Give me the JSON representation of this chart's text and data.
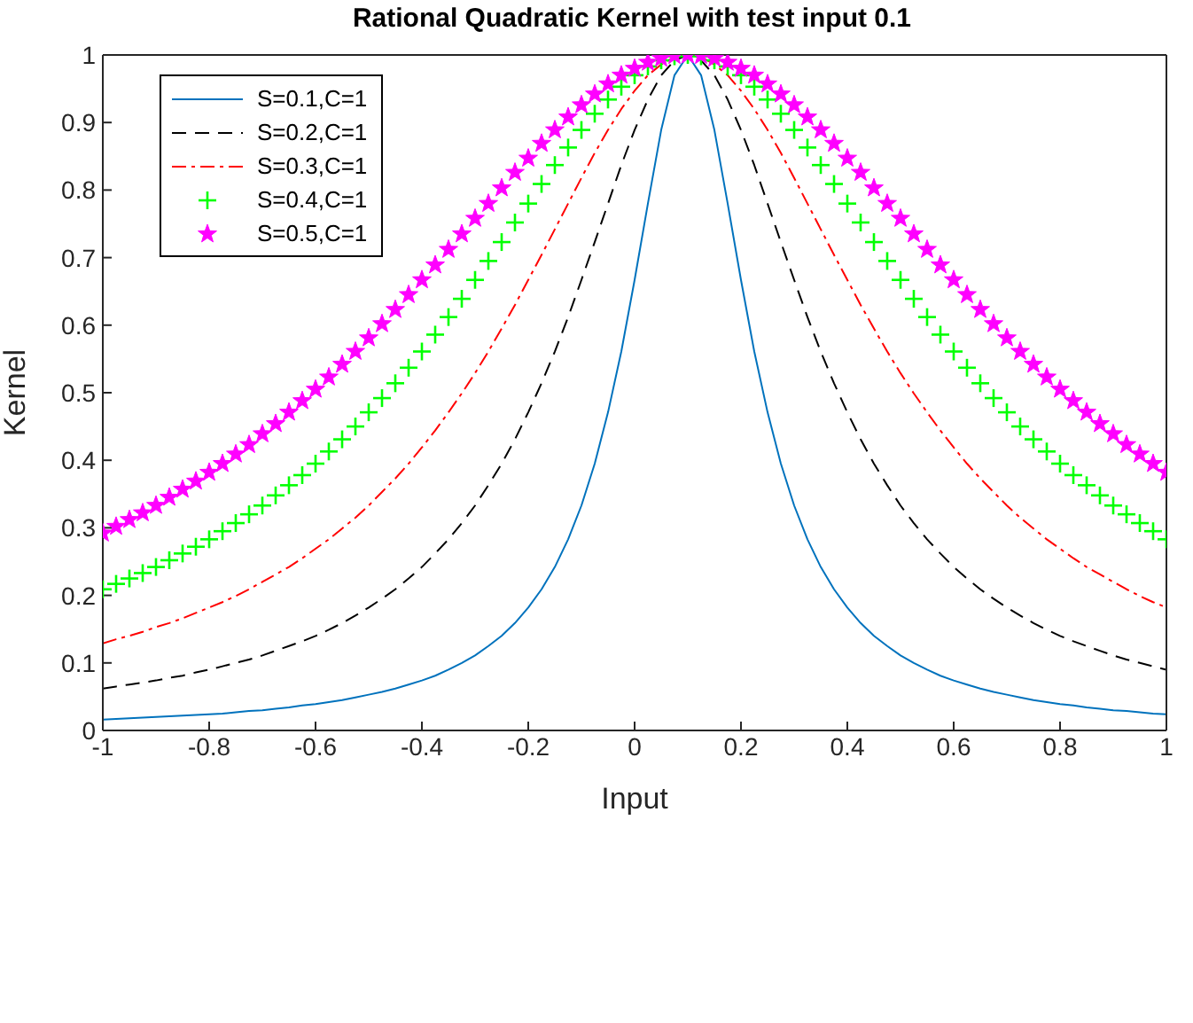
{
  "chart_data": {
    "type": "line",
    "title": "Rational Quadratic Kernel with test input 0.1",
    "xlabel": "Input",
    "ylabel": "Kernel",
    "x": [
      -1,
      -0.975,
      -0.95,
      -0.925,
      -0.9,
      -0.875,
      -0.85,
      -0.825,
      -0.8,
      -0.775,
      -0.75,
      -0.725,
      -0.7,
      -0.675,
      -0.65,
      -0.625,
      -0.6,
      -0.575,
      -0.55,
      -0.525,
      -0.5,
      -0.475,
      -0.45,
      -0.425,
      -0.4,
      -0.375,
      -0.35,
      -0.325,
      -0.3,
      -0.275,
      -0.25,
      -0.225,
      -0.2,
      -0.175,
      -0.15,
      -0.125,
      -0.1,
      -0.075,
      -0.05,
      -0.025,
      0,
      0.025,
      0.05,
      0.075,
      0.1,
      0.125,
      0.15,
      0.175,
      0.2,
      0.225,
      0.25,
      0.275,
      0.3,
      0.325,
      0.35,
      0.375,
      0.4,
      0.425,
      0.45,
      0.475,
      0.5,
      0.525,
      0.55,
      0.575,
      0.6,
      0.625,
      0.65,
      0.675,
      0.7,
      0.725,
      0.75,
      0.775,
      0.8,
      0.825,
      0.85,
      0.875,
      0.9,
      0.925,
      0.95,
      0.975,
      1
    ],
    "series": [
      {
        "name": "S=0.1,C=1",
        "color": "#0072bd",
        "line_style": "solid",
        "values": [
          0.016,
          0.017,
          0.018,
          0.019,
          0.02,
          0.021,
          0.022,
          0.023,
          0.024,
          0.025,
          0.027,
          0.029,
          0.03,
          0.032,
          0.034,
          0.037,
          0.039,
          0.042,
          0.045,
          0.049,
          0.053,
          0.057,
          0.062,
          0.068,
          0.074,
          0.081,
          0.09,
          0.1,
          0.111,
          0.125,
          0.14,
          0.159,
          0.182,
          0.209,
          0.242,
          0.283,
          0.333,
          0.395,
          0.471,
          0.561,
          0.667,
          0.78,
          0.889,
          0.97,
          1,
          0.97,
          0.889,
          0.78,
          0.667,
          0.561,
          0.471,
          0.395,
          0.333,
          0.283,
          0.242,
          0.209,
          0.182,
          0.159,
          0.14,
          0.125,
          0.111,
          0.1,
          0.09,
          0.081,
          0.074,
          0.068,
          0.062,
          0.057,
          0.053,
          0.049,
          0.045,
          0.042,
          0.039,
          0.037,
          0.034,
          0.032,
          0.03,
          0.029,
          0.027,
          0.025,
          0.024
        ]
      },
      {
        "name": "S=0.2,C=1",
        "color": "#000000",
        "line_style": "dashed",
        "values": [
          0.062,
          0.065,
          0.068,
          0.071,
          0.074,
          0.078,
          0.081,
          0.086,
          0.09,
          0.095,
          0.1,
          0.105,
          0.111,
          0.118,
          0.125,
          0.132,
          0.14,
          0.149,
          0.159,
          0.17,
          0.182,
          0.195,
          0.209,
          0.225,
          0.242,
          0.262,
          0.283,
          0.307,
          0.333,
          0.363,
          0.395,
          0.431,
          0.471,
          0.514,
          0.561,
          0.612,
          0.667,
          0.723,
          0.78,
          0.837,
          0.889,
          0.934,
          0.97,
          0.992,
          1,
          0.992,
          0.97,
          0.934,
          0.889,
          0.837,
          0.78,
          0.723,
          0.667,
          0.612,
          0.561,
          0.514,
          0.471,
          0.431,
          0.395,
          0.363,
          0.333,
          0.307,
          0.283,
          0.262,
          0.242,
          0.225,
          0.209,
          0.195,
          0.182,
          0.17,
          0.159,
          0.149,
          0.14,
          0.132,
          0.125,
          0.118,
          0.111,
          0.105,
          0.1,
          0.095,
          0.09
        ]
      },
      {
        "name": "S=0.3,C=1",
        "color": "#ff0000",
        "line_style": "dashdot",
        "values": [
          0.129,
          0.135,
          0.14,
          0.146,
          0.153,
          0.159,
          0.166,
          0.174,
          0.182,
          0.19,
          0.199,
          0.209,
          0.22,
          0.231,
          0.242,
          0.255,
          0.269,
          0.283,
          0.299,
          0.315,
          0.333,
          0.353,
          0.373,
          0.395,
          0.419,
          0.444,
          0.471,
          0.499,
          0.529,
          0.561,
          0.595,
          0.63,
          0.667,
          0.704,
          0.742,
          0.78,
          0.818,
          0.855,
          0.889,
          0.92,
          0.947,
          0.97,
          0.986,
          0.997,
          1,
          0.997,
          0.986,
          0.97,
          0.947,
          0.92,
          0.889,
          0.855,
          0.818,
          0.78,
          0.742,
          0.704,
          0.667,
          0.63,
          0.595,
          0.561,
          0.529,
          0.499,
          0.471,
          0.444,
          0.419,
          0.395,
          0.373,
          0.353,
          0.333,
          0.315,
          0.299,
          0.283,
          0.269,
          0.255,
          0.242,
          0.231,
          0.22,
          0.209,
          0.199,
          0.19,
          0.182
        ]
      },
      {
        "name": "S=0.4,C=1",
        "type": "scatter",
        "color": "#00ff00",
        "marker": "cross",
        "values": [
          0.209,
          0.217,
          0.225,
          0.233,
          0.242,
          0.252,
          0.262,
          0.272,
          0.283,
          0.295,
          0.307,
          0.32,
          0.333,
          0.348,
          0.363,
          0.378,
          0.395,
          0.413,
          0.431,
          0.45,
          0.471,
          0.492,
          0.514,
          0.537,
          0.561,
          0.586,
          0.612,
          0.639,
          0.667,
          0.695,
          0.723,
          0.752,
          0.78,
          0.809,
          0.837,
          0.863,
          0.889,
          0.913,
          0.934,
          0.953,
          0.97,
          0.983,
          0.992,
          0.998,
          1,
          0.998,
          0.992,
          0.983,
          0.97,
          0.953,
          0.934,
          0.913,
          0.889,
          0.863,
          0.837,
          0.809,
          0.78,
          0.752,
          0.723,
          0.695,
          0.667,
          0.639,
          0.612,
          0.586,
          0.561,
          0.537,
          0.514,
          0.492,
          0.471,
          0.45,
          0.431,
          0.413,
          0.395,
          0.378,
          0.363,
          0.348,
          0.333,
          0.32,
          0.307,
          0.295,
          0.283
        ]
      },
      {
        "name": "S=0.5,C=1",
        "type": "scatter",
        "color": "#ff00ff",
        "marker": "star",
        "values": [
          0.292,
          0.302,
          0.312,
          0.322,
          0.333,
          0.345,
          0.357,
          0.369,
          0.382,
          0.395,
          0.409,
          0.423,
          0.439,
          0.454,
          0.471,
          0.488,
          0.505,
          0.523,
          0.542,
          0.561,
          0.581,
          0.602,
          0.623,
          0.645,
          0.667,
          0.689,
          0.712,
          0.735,
          0.758,
          0.78,
          0.803,
          0.826,
          0.847,
          0.869,
          0.889,
          0.908,
          0.926,
          0.942,
          0.957,
          0.97,
          0.98,
          0.989,
          0.995,
          0.999,
          1,
          0.999,
          0.995,
          0.989,
          0.98,
          0.97,
          0.957,
          0.942,
          0.926,
          0.908,
          0.889,
          0.869,
          0.847,
          0.826,
          0.803,
          0.78,
          0.758,
          0.735,
          0.712,
          0.689,
          0.667,
          0.645,
          0.623,
          0.602,
          0.581,
          0.561,
          0.542,
          0.523,
          0.505,
          0.488,
          0.471,
          0.454,
          0.439,
          0.423,
          0.409,
          0.395,
          0.382
        ]
      }
    ],
    "xlim": [
      -1,
      1
    ],
    "xticks": [
      -1,
      -0.8,
      -0.6,
      -0.4,
      -0.2,
      0,
      0.2,
      0.4,
      0.6,
      0.8,
      1
    ],
    "ylim": [
      0,
      1
    ],
    "yticks": [
      0,
      0.1,
      0.2,
      0.3,
      0.4,
      0.5,
      0.6,
      0.7,
      0.8,
      0.9,
      1
    ],
    "legend": "top left"
  }
}
